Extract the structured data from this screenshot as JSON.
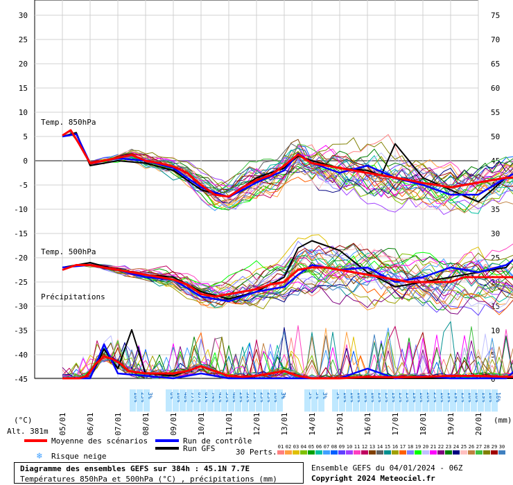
{
  "chart_data": {
    "type": "line",
    "left_axis": {
      "label": "(°C)",
      "ticks": [
        30,
        25,
        20,
        15,
        10,
        5,
        0,
        -5,
        -10,
        -15,
        -20,
        -25,
        -30,
        -35,
        -40,
        -45
      ],
      "range": [
        -45,
        30
      ]
    },
    "right_axis": {
      "label": "(mm)",
      "ticks": [
        75,
        70,
        65,
        60,
        55,
        50,
        45,
        40,
        35,
        30,
        25,
        20,
        15,
        10,
        5,
        0
      ],
      "range": [
        0,
        75
      ]
    },
    "x_labels": [
      "05/01",
      "06/01",
      "07/01",
      "08/01",
      "09/01",
      "10/01",
      "11/01",
      "12/01",
      "13/01",
      "14/01",
      "15/01",
      "16/01",
      "17/01",
      "18/01",
      "19/01",
      "20/01"
    ],
    "altitude_label": "Alt. 381m",
    "section_labels": {
      "t850": "Temp. 850hPa",
      "t500": "Temp. 500hPa",
      "precip": "Précipitations"
    },
    "snow_risk": [
      {
        "day": 2.75,
        "pcts": [
          "16%",
          "23%",
          "3%"
        ]
      },
      {
        "day": 4.05,
        "pcts": [
          "6%",
          "16%",
          "48%",
          "77%",
          "87%",
          "81%",
          "74%",
          "42%",
          "35%",
          "48%",
          "29%",
          "32%",
          "23%",
          "23%",
          "23%",
          "16%",
          "3%"
        ]
      },
      {
        "day": 8.05,
        "pcts": [
          "3%"
        ]
      },
      {
        "day": 9.05,
        "pcts": [
          "3%",
          "3%",
          "3%"
        ]
      },
      {
        "day": 10.05,
        "pcts": [
          "3%",
          "10%",
          "10%",
          "10%",
          "10%",
          "10%",
          "13%",
          "13%",
          "19%",
          "13%",
          "13%",
          "19%",
          "16%",
          "26%",
          "23%",
          "16%",
          "19%",
          "19%",
          "13%",
          "16%",
          "16%",
          "19%",
          "10%",
          "16%"
        ]
      }
    ],
    "series": [
      {
        "name": "Moyenne des scénarios",
        "color": "#ff0000",
        "t850": [
          [
            0,
            5.2
          ],
          [
            0.3,
            6.3
          ],
          [
            0.6,
            3.5
          ],
          [
            1,
            -0.5
          ],
          [
            1.5,
            0
          ],
          [
            2,
            0.6
          ],
          [
            2.5,
            1.2
          ],
          [
            3,
            0
          ],
          [
            3.5,
            -0.5
          ],
          [
            4,
            -1.2
          ],
          [
            4.5,
            -2.5
          ],
          [
            5,
            -5
          ],
          [
            5.5,
            -7
          ],
          [
            6,
            -7.4
          ],
          [
            6.5,
            -5.5
          ],
          [
            7,
            -4
          ],
          [
            7.5,
            -3
          ],
          [
            8,
            -1
          ],
          [
            8.5,
            1.3
          ],
          [
            9,
            -0.5
          ],
          [
            9.5,
            -1
          ],
          [
            10,
            -1.5
          ],
          [
            10.5,
            -2
          ],
          [
            11,
            -2.5
          ],
          [
            11.5,
            -3
          ],
          [
            12,
            -3.5
          ],
          [
            12.5,
            -4
          ],
          [
            13,
            -4.6
          ],
          [
            13.5,
            -5
          ],
          [
            14,
            -5.5
          ],
          [
            14.5,
            -5
          ],
          [
            15,
            -4.5
          ],
          [
            15.5,
            -4
          ],
          [
            16,
            -3.5
          ],
          [
            16.5,
            -3.5
          ],
          [
            17,
            -4.5
          ]
        ],
        "t500": [
          [
            0,
            -22.5
          ],
          [
            0.5,
            -21.5
          ],
          [
            1,
            -21.5
          ],
          [
            1.5,
            -22
          ],
          [
            2,
            -22.5
          ],
          [
            2.5,
            -23
          ],
          [
            3,
            -23.5
          ],
          [
            3.5,
            -24
          ],
          [
            4,
            -24.5
          ],
          [
            4.5,
            -25.5
          ],
          [
            5,
            -27.5
          ],
          [
            5.5,
            -28
          ],
          [
            6,
            -27.5
          ],
          [
            6.5,
            -27
          ],
          [
            7,
            -26.5
          ],
          [
            7.5,
            -25.5
          ],
          [
            8,
            -25
          ],
          [
            8.5,
            -22.5
          ],
          [
            9,
            -22
          ],
          [
            9.5,
            -22
          ],
          [
            10,
            -22.5
          ],
          [
            10.5,
            -23
          ],
          [
            11,
            -23.5
          ],
          [
            11.5,
            -24
          ],
          [
            12,
            -24.5
          ],
          [
            12.5,
            -25
          ],
          [
            13,
            -25
          ],
          [
            13.5,
            -25
          ],
          [
            14,
            -25
          ],
          [
            14.5,
            -24
          ],
          [
            15,
            -24
          ],
          [
            15.5,
            -24
          ],
          [
            16,
            -24
          ],
          [
            16.5,
            -24
          ],
          [
            17,
            -25
          ]
        ],
        "precip": [
          [
            0,
            0
          ],
          [
            0.6,
            0
          ],
          [
            0.9,
            0.5
          ],
          [
            1.2,
            3
          ],
          [
            1.5,
            4.5
          ],
          [
            1.8,
            4
          ],
          [
            2.1,
            3
          ],
          [
            2.4,
            1.5
          ],
          [
            3,
            1
          ],
          [
            3.5,
            1
          ],
          [
            4,
            1
          ],
          [
            4.5,
            1.5
          ],
          [
            5,
            2.5
          ],
          [
            5.5,
            1.5
          ],
          [
            6,
            0.5
          ],
          [
            6.5,
            0.3
          ],
          [
            7,
            0.5
          ],
          [
            7.5,
            1
          ],
          [
            8,
            1.5
          ],
          [
            8.5,
            0.5
          ],
          [
            9,
            0
          ],
          [
            10,
            0
          ],
          [
            11,
            0.3
          ],
          [
            12,
            0.2
          ],
          [
            13,
            0.3
          ],
          [
            14,
            0.5
          ],
          [
            15,
            0.5
          ],
          [
            16,
            0.3
          ],
          [
            17,
            0.3
          ]
        ]
      },
      {
        "name": "Run de contrôle",
        "color": "#0000ff",
        "t850": [
          [
            0,
            5
          ],
          [
            0.5,
            5.5
          ],
          [
            1,
            -0.5
          ],
          [
            2,
            0.5
          ],
          [
            3,
            0
          ],
          [
            4,
            -1.5
          ],
          [
            5,
            -5.5
          ],
          [
            6,
            -7.5
          ],
          [
            7,
            -4.5
          ],
          [
            8,
            -2
          ],
          [
            8.5,
            1.5
          ],
          [
            9,
            -0.5
          ],
          [
            10,
            -2.5
          ],
          [
            11,
            -1
          ],
          [
            12,
            -3.5
          ],
          [
            13,
            -5
          ],
          [
            14,
            -7
          ],
          [
            15,
            -7
          ],
          [
            16,
            -3.5
          ],
          [
            16.5,
            -2
          ],
          [
            17,
            1.5
          ]
        ],
        "t500": [
          [
            0,
            -22
          ],
          [
            1,
            -21.5
          ],
          [
            2,
            -22.5
          ],
          [
            3,
            -24
          ],
          [
            4,
            -24.5
          ],
          [
            5,
            -28
          ],
          [
            6,
            -29
          ],
          [
            7,
            -27
          ],
          [
            8,
            -26
          ],
          [
            8.5,
            -23.5
          ],
          [
            9,
            -21.5
          ],
          [
            10,
            -22.5
          ],
          [
            11,
            -22
          ],
          [
            12,
            -25
          ],
          [
            13,
            -24
          ],
          [
            14,
            -22
          ],
          [
            15,
            -23
          ],
          [
            16,
            -21.5
          ],
          [
            17,
            -17.5
          ]
        ],
        "precip": [
          [
            0,
            0
          ],
          [
            1,
            0
          ],
          [
            1.5,
            7
          ],
          [
            2,
            1
          ],
          [
            3,
            0.5
          ],
          [
            4,
            0
          ],
          [
            5,
            1
          ],
          [
            6,
            0
          ],
          [
            7,
            0
          ],
          [
            8,
            0
          ],
          [
            9,
            0
          ],
          [
            10,
            0
          ],
          [
            11,
            2
          ],
          [
            12,
            0
          ],
          [
            13,
            0.5
          ],
          [
            14,
            0
          ],
          [
            15,
            0
          ],
          [
            16,
            0
          ],
          [
            17,
            5
          ]
        ]
      },
      {
        "name": "Run GFS",
        "color": "#000000",
        "t850": [
          [
            0,
            5
          ],
          [
            0.5,
            5.8
          ],
          [
            1,
            -1
          ],
          [
            2,
            0
          ],
          [
            3,
            -0.5
          ],
          [
            4,
            -2
          ],
          [
            5,
            -6
          ],
          [
            6,
            -7.5
          ],
          [
            7,
            -3.5
          ],
          [
            8,
            -1.5
          ],
          [
            8.5,
            1
          ],
          [
            9,
            0
          ],
          [
            10,
            -1.5
          ],
          [
            11,
            -2
          ],
          [
            11.5,
            -3
          ],
          [
            12,
            3.5
          ],
          [
            13,
            -3.5
          ],
          [
            14,
            -6
          ],
          [
            15,
            -8.5
          ],
          [
            16,
            -3.5
          ],
          [
            17,
            -0.5
          ]
        ],
        "t500": [
          [
            0,
            -22
          ],
          [
            1,
            -21
          ],
          [
            2,
            -22.5
          ],
          [
            3,
            -23.5
          ],
          [
            4,
            -24
          ],
          [
            5,
            -27
          ],
          [
            6,
            -28.5
          ],
          [
            7,
            -27
          ],
          [
            8,
            -24
          ],
          [
            8.5,
            -18
          ],
          [
            9,
            -16.5
          ],
          [
            10,
            -18.5
          ],
          [
            11,
            -23
          ],
          [
            12,
            -26
          ],
          [
            13,
            -25
          ],
          [
            14,
            -24
          ],
          [
            15,
            -23
          ],
          [
            16,
            -22
          ],
          [
            17,
            -15.5
          ]
        ],
        "precip": [
          [
            0,
            0
          ],
          [
            1,
            0
          ],
          [
            1.5,
            6
          ],
          [
            2,
            2
          ],
          [
            2.5,
            10
          ],
          [
            3,
            1
          ],
          [
            4,
            0.5
          ],
          [
            5,
            2.5
          ],
          [
            6,
            0.5
          ],
          [
            7,
            0
          ],
          [
            8,
            0
          ],
          [
            9,
            0
          ],
          [
            10,
            0
          ],
          [
            11,
            0
          ],
          [
            12,
            0
          ],
          [
            13,
            0
          ],
          [
            14,
            0
          ],
          [
            15,
            0
          ],
          [
            16,
            0
          ],
          [
            17,
            0
          ]
        ]
      }
    ],
    "member_palette": [
      "#ff8080",
      "#ffa040",
      "#e0c000",
      "#80c000",
      "#00a000",
      "#00c0a0",
      "#40a0ff",
      "#0060ff",
      "#6040ff",
      "#a040ff",
      "#ff40c0",
      "#c00060",
      "#804000",
      "#606060",
      "#009090",
      "#a0a000",
      "#ff6000",
      "#8080ff",
      "#00ff00",
      "#c0c0ff",
      "#ff00ff",
      "#800080",
      "#008000",
      "#000080",
      "#ffc0c0",
      "#c08040",
      "#40c040",
      "#808000",
      "#a00000",
      "#4080c0"
    ],
    "legend": {
      "mean": "Moyenne des scénarios",
      "control": "Run de contrôle",
      "gfs": "Run GFS",
      "snow": "Risque neige",
      "perts_label": "30 Perts.",
      "perts_numbers": [
        "01",
        "02",
        "03",
        "04",
        "05",
        "06",
        "07",
        "08",
        "09",
        "10",
        "11",
        "12",
        "13",
        "14",
        "15",
        "16",
        "17",
        "18",
        "19",
        "20",
        "21",
        "22",
        "23",
        "24",
        "25",
        "26",
        "27",
        "28",
        "29",
        "30"
      ]
    }
  },
  "footer": {
    "title": "Diagramme des ensembles GEFS sur 384h : 45.1N 7.7E",
    "subtitle": "Températures 850hPa et 500hPa (°C) , précipitations (mm)",
    "ensemble_info": "Ensemble GEFS du 04/01/2024 - 06Z",
    "copyright": "Copyright 2024 Meteociel.fr"
  }
}
